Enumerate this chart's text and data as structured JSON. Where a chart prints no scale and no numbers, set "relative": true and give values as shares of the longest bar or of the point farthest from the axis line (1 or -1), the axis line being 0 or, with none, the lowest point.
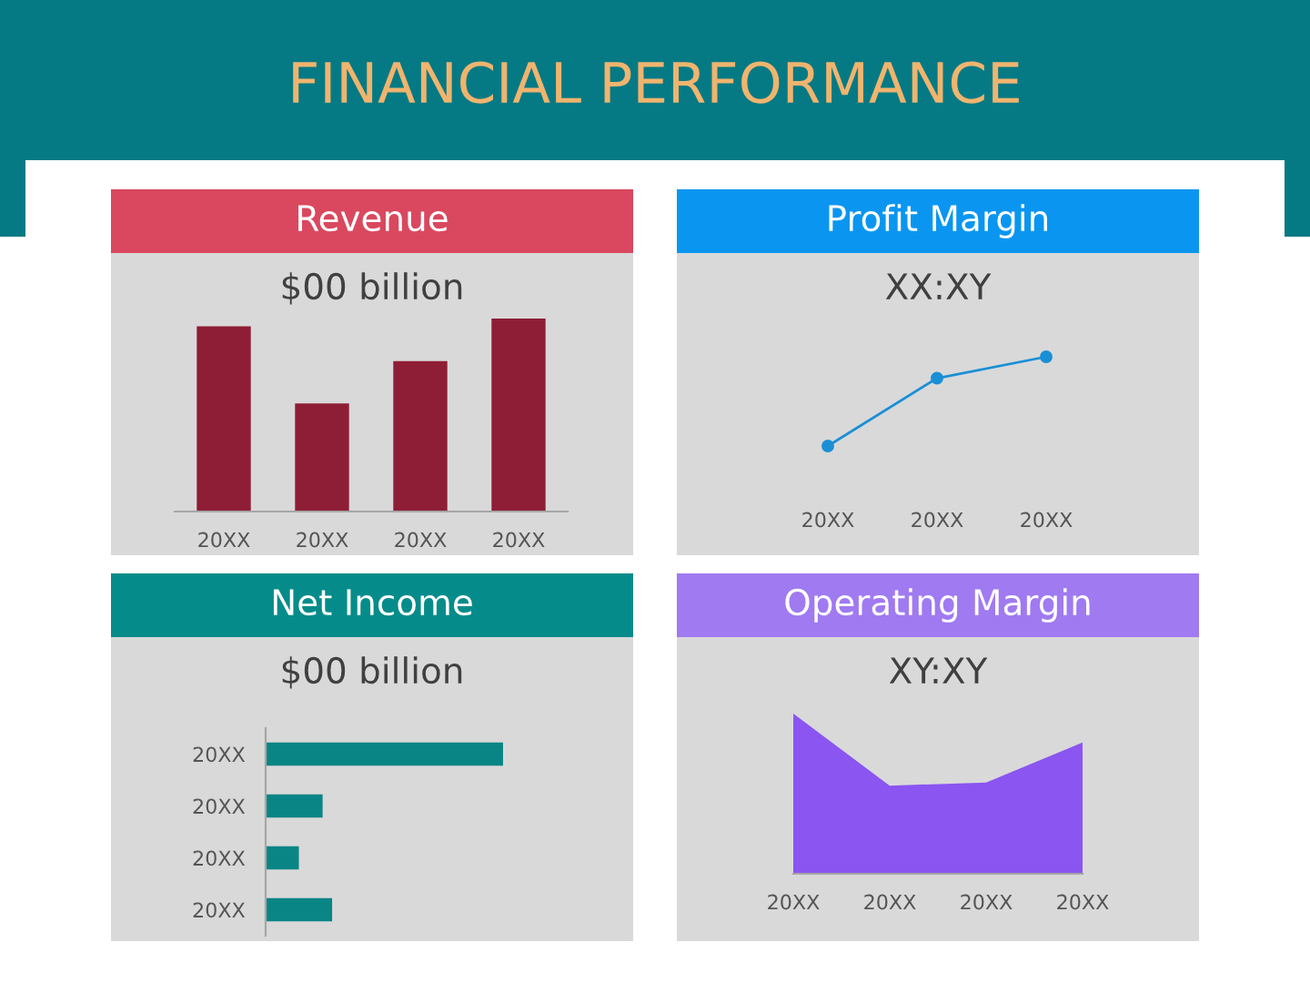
{
  "chart_data": [
    {
      "type": "bar",
      "title": "Revenue",
      "subtitle": "$00 billion",
      "annotations": [
        "FINANCIAL PERFORMANCE"
      ],
      "categories": [
        "20XX",
        "20XX",
        "20XX",
        "20XX"
      ],
      "values": [
        0.96,
        0.56,
        0.78,
        1
      ],
      "color": "#8e1e35",
      "relative": true
    },
    {
      "type": "line",
      "title": "Profit Margin",
      "subtitle": "XX:XY",
      "categories": [
        "20XX",
        "20XX",
        "20XX"
      ],
      "values": [
        0,
        0.76,
        1
      ],
      "color": "#1a8fd6",
      "marker": "circle",
      "relative": true
    },
    {
      "type": "bar",
      "orientation": "horizontal",
      "title": "Net Income",
      "subtitle": "$00 billion",
      "categories": [
        "20XX",
        "20XX",
        "20XX",
        "20XX"
      ],
      "values": [
        1,
        0.24,
        0.14,
        0.28
      ],
      "color": "#0a8585",
      "relative": true
    },
    {
      "type": "area",
      "title": "Operating Margin",
      "subtitle": "XY:XY",
      "categories": [
        "20XX",
        "20XX",
        "20XX",
        "20XX"
      ],
      "values": [
        1,
        0.55,
        0.57,
        0.82
      ],
      "color": "#8a55f0",
      "relative": true
    }
  ]
}
